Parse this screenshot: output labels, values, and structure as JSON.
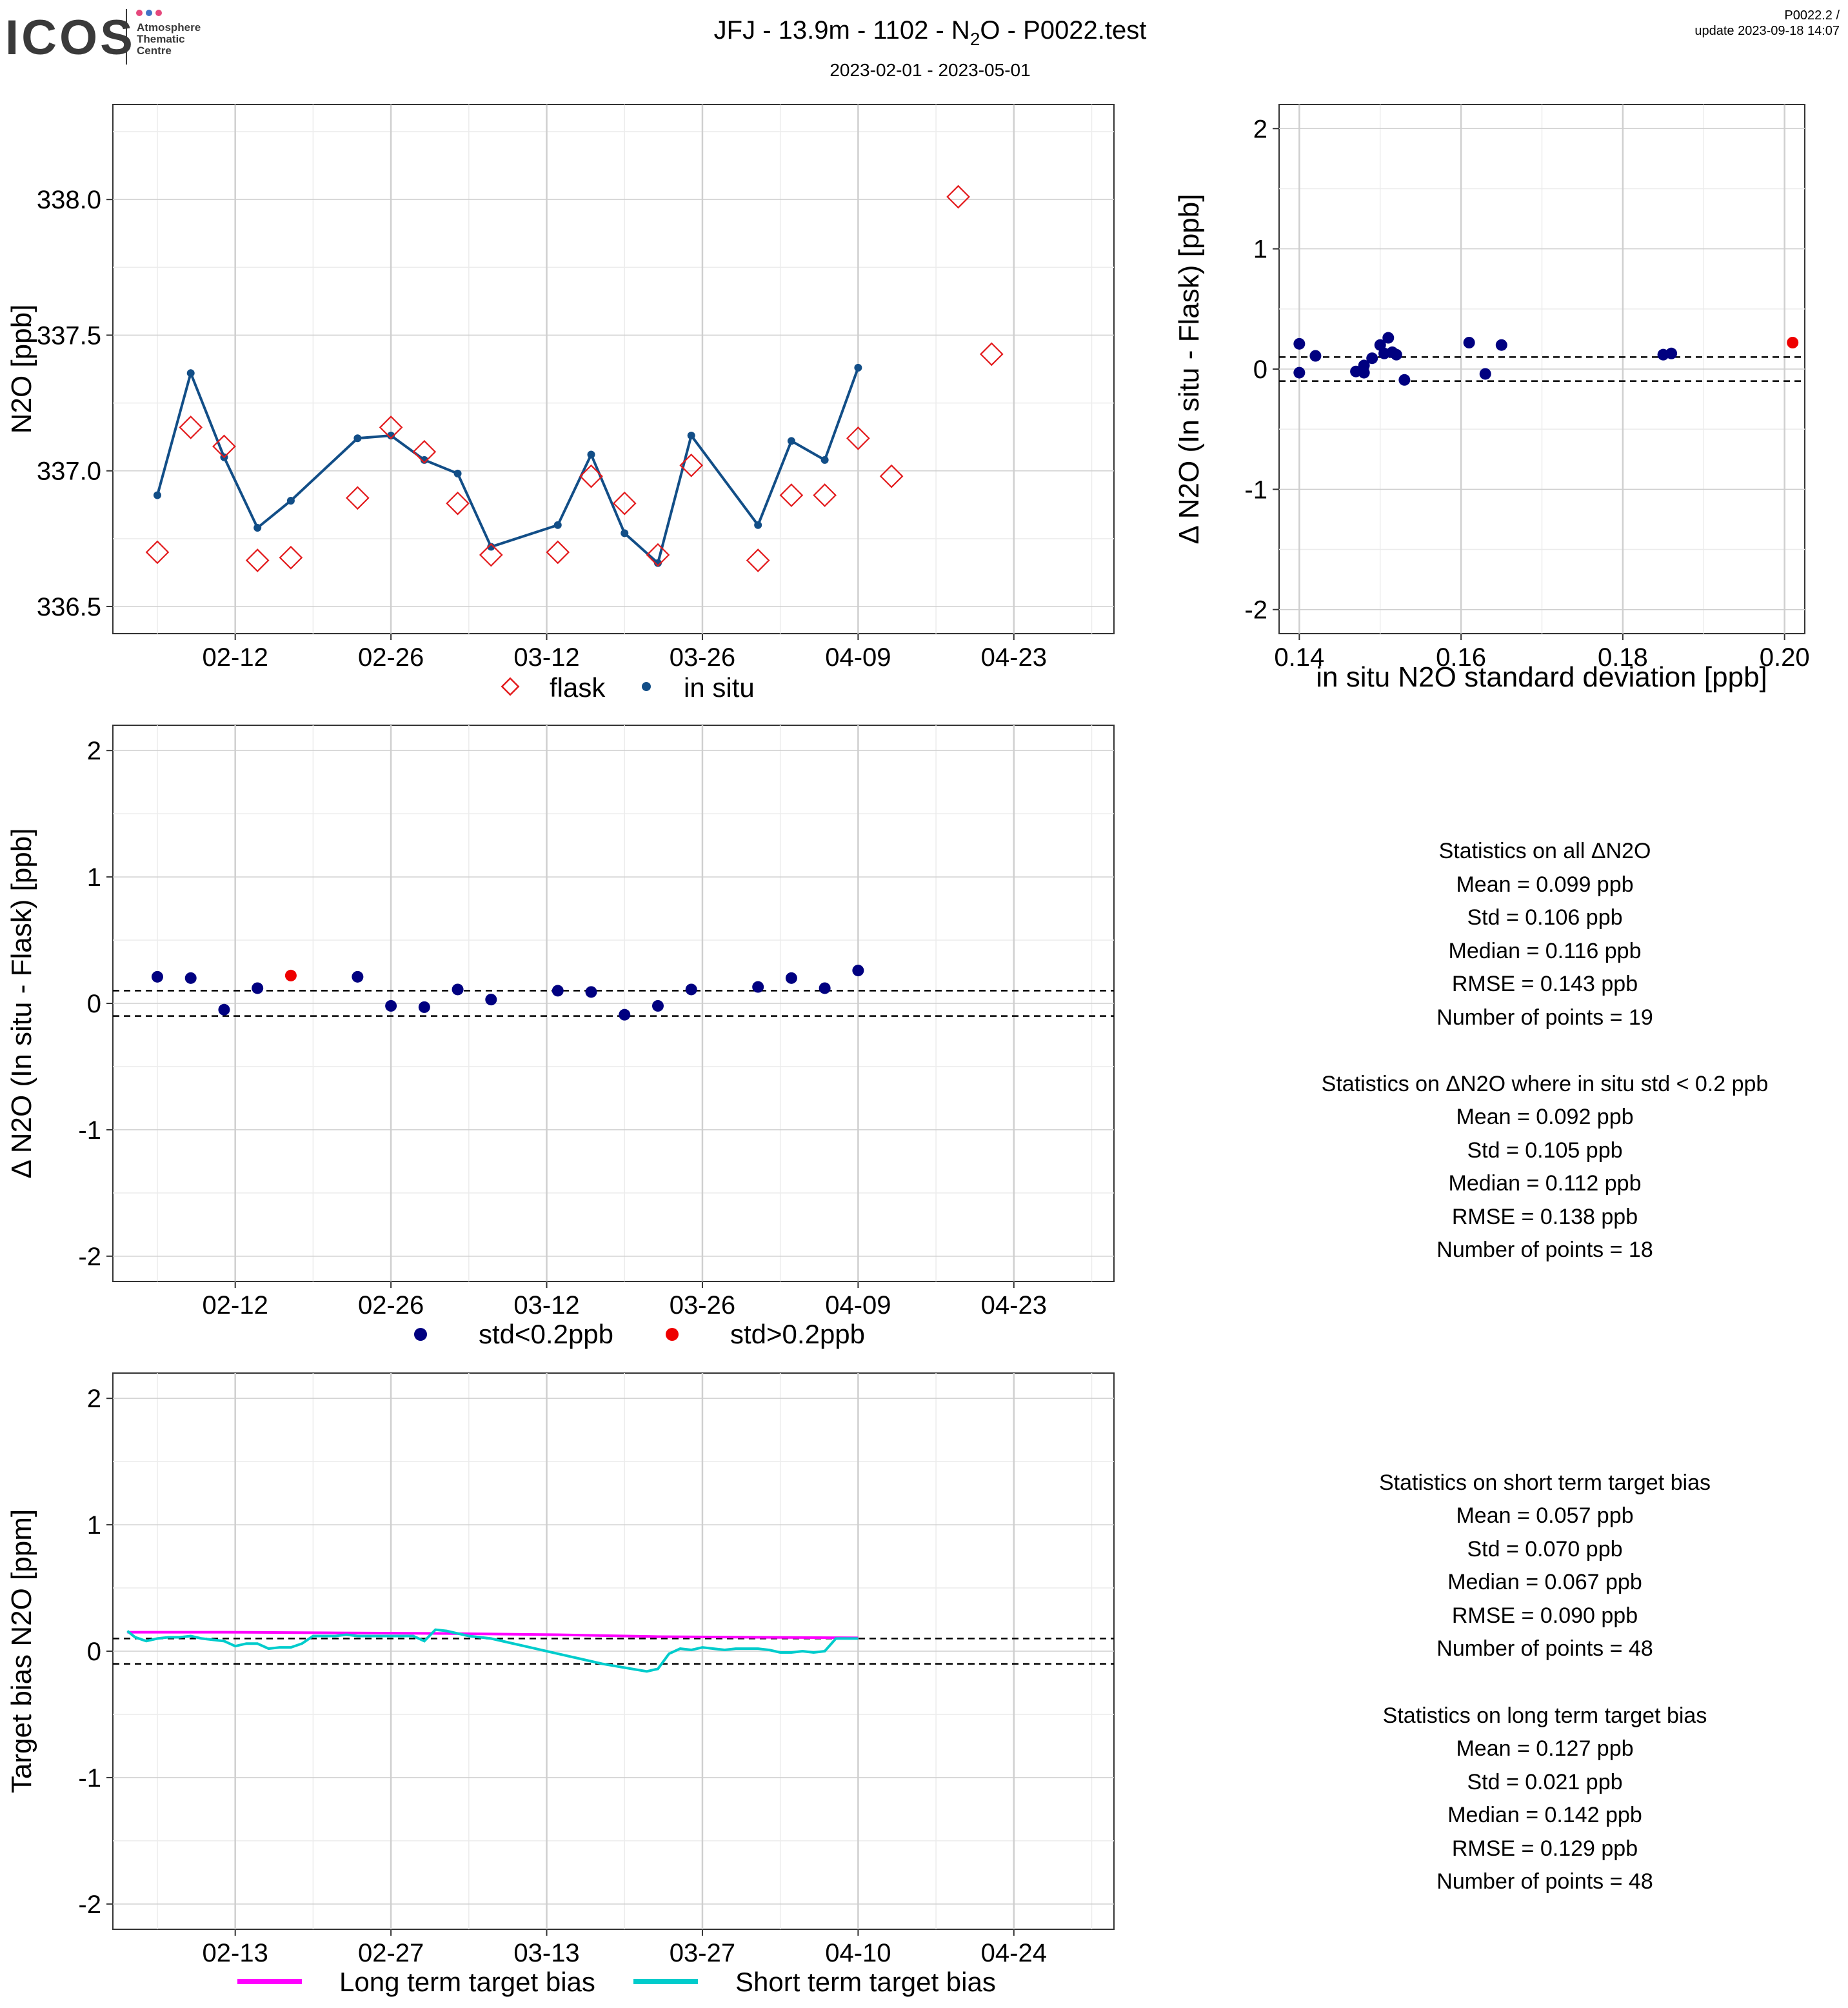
{
  "header": {
    "logo_text": "ICOS",
    "logo_sub": [
      "Atmosphere",
      "Thematic",
      "Centre"
    ],
    "title_prefix": "JFJ - 13.9m - 1102 - N",
    "title_subscript": "2",
    "title_suffix": "O - P0022.test",
    "subtitle": "2023-02-01 - 2023-05-01",
    "version": "P0022.2 /",
    "update": "update  2023-09-18 14:07"
  },
  "colors": {
    "flask": "#e31a1c",
    "insitu": "#124e87",
    "low_std": "#000080",
    "high_std": "#ee0000",
    "long_term": "#ff00ff",
    "short_term": "#00cccc",
    "grid_major": "#cfcfcf",
    "grid_minor": "#ececec"
  },
  "chart_data": [
    {
      "id": "timeseries",
      "type": "line",
      "ylabel": "N2O [ppb]",
      "xlim": [
        0,
        90
      ],
      "ylim": [
        336.4,
        338.35
      ],
      "x_ticks": [
        {
          "x": 11,
          "label": "02-12"
        },
        {
          "x": 25,
          "label": "02-26"
        },
        {
          "x": 39,
          "label": "03-12"
        },
        {
          "x": 53,
          "label": "03-26"
        },
        {
          "x": 67,
          "label": "04-09"
        },
        {
          "x": 81,
          "label": "04-23"
        }
      ],
      "y_ticks": [
        {
          "y": 336.5,
          "label": "336.5"
        },
        {
          "y": 337.0,
          "label": "337.0"
        },
        {
          "y": 337.5,
          "label": "337.5"
        },
        {
          "y": 338.0,
          "label": "338.0"
        }
      ],
      "legend": [
        "flask",
        "in situ"
      ],
      "series": [
        {
          "name": "flask",
          "marker": "diamond",
          "x": [
            4,
            7,
            10,
            13,
            16,
            22,
            25,
            28,
            31,
            34,
            40,
            43,
            46,
            49,
            52,
            58,
            61,
            64,
            67,
            70,
            76,
            79
          ],
          "y": [
            336.7,
            337.16,
            337.09,
            336.67,
            336.68,
            336.9,
            337.16,
            337.07,
            336.88,
            336.69,
            336.7,
            336.98,
            336.88,
            336.69,
            337.02,
            336.67,
            336.91,
            336.91,
            337.12,
            336.98,
            338.01,
            337.43
          ]
        },
        {
          "name": "in situ",
          "marker": "dot-line",
          "x": [
            4,
            7,
            10,
            13,
            16,
            22,
            25,
            28,
            31,
            34,
            40,
            43,
            46,
            49,
            52,
            58,
            61,
            64,
            67
          ],
          "y": [
            336.91,
            337.36,
            337.05,
            336.79,
            336.89,
            337.12,
            337.13,
            337.04,
            336.99,
            336.72,
            336.8,
            337.06,
            336.77,
            336.66,
            337.13,
            336.8,
            337.11,
            337.04,
            337.38
          ]
        }
      ]
    },
    {
      "id": "std-scatter",
      "type": "scatter",
      "ylabel": "Δ N2O (In situ - Flask) [ppb]",
      "xlabel": "in situ N2O standard deviation [ppb]",
      "xlim": [
        0.1375,
        0.2025
      ],
      "ylim": [
        -2.2,
        2.2
      ],
      "x_ticks": [
        {
          "x": 0.14,
          "label": "0.14"
        },
        {
          "x": 0.16,
          "label": "0.16"
        },
        {
          "x": 0.18,
          "label": "0.18"
        },
        {
          "x": 0.2,
          "label": "0.20"
        }
      ],
      "y_ticks": [
        {
          "y": -2,
          "label": "-2"
        },
        {
          "y": -1,
          "label": "-1"
        },
        {
          "y": 0,
          "label": "0"
        },
        {
          "y": 1,
          "label": "1"
        },
        {
          "y": 2,
          "label": "2"
        }
      ],
      "threshold_lines": [
        0.1,
        -0.1
      ],
      "series": [
        {
          "name": "std<0.2ppb",
          "x": [
            0.14,
            0.14,
            0.142,
            0.147,
            0.148,
            0.148,
            0.149,
            0.15,
            0.1505,
            0.151,
            0.1515,
            0.152,
            0.153,
            0.161,
            0.163,
            0.165,
            0.185,
            0.186
          ],
          "y": [
            0.21,
            -0.03,
            0.11,
            -0.02,
            -0.03,
            0.03,
            0.09,
            0.2,
            0.13,
            0.26,
            0.14,
            0.12,
            -0.09,
            0.22,
            -0.04,
            0.2,
            0.12,
            0.13
          ]
        },
        {
          "name": "std>0.2ppb",
          "x": [
            0.201
          ],
          "y": [
            0.22
          ]
        }
      ]
    },
    {
      "id": "delta-time",
      "type": "scatter",
      "ylabel": "Δ N2O (In situ - Flask) [ppb]",
      "xlim": [
        0,
        90
      ],
      "ylim": [
        -2.2,
        2.2
      ],
      "x_ticks": [
        {
          "x": 11,
          "label": "02-12"
        },
        {
          "x": 25,
          "label": "02-26"
        },
        {
          "x": 39,
          "label": "03-12"
        },
        {
          "x": 53,
          "label": "03-26"
        },
        {
          "x": 67,
          "label": "04-09"
        },
        {
          "x": 81,
          "label": "04-23"
        }
      ],
      "y_ticks": [
        {
          "y": -2,
          "label": "-2"
        },
        {
          "y": -1,
          "label": "-1"
        },
        {
          "y": 0,
          "label": "0"
        },
        {
          "y": 1,
          "label": "1"
        },
        {
          "y": 2,
          "label": "2"
        }
      ],
      "threshold_lines": [
        0.1,
        -0.1
      ],
      "legend": [
        "std<0.2ppb",
        "std>0.2ppb"
      ],
      "series": [
        {
          "name": "std<0.2ppb",
          "x": [
            4,
            7,
            10,
            13,
            22,
            25,
            28,
            31,
            34,
            40,
            43,
            46,
            49,
            52,
            58,
            61,
            64,
            67
          ],
          "y": [
            0.21,
            0.2,
            -0.05,
            0.12,
            0.21,
            -0.02,
            -0.03,
            0.11,
            0.03,
            0.1,
            0.09,
            -0.09,
            -0.02,
            0.11,
            0.13,
            0.2,
            0.12,
            0.26
          ]
        },
        {
          "name": "std>0.2ppb",
          "x": [
            16
          ],
          "y": [
            0.22
          ]
        }
      ]
    },
    {
      "id": "target-bias",
      "type": "line",
      "ylabel": "Target bias N2O [ppm]",
      "xlim": [
        0,
        90
      ],
      "ylim": [
        -2.2,
        2.2
      ],
      "x_ticks": [
        {
          "x": 11,
          "label": "02-13"
        },
        {
          "x": 25,
          "label": "02-27"
        },
        {
          "x": 39,
          "label": "03-13"
        },
        {
          "x": 53,
          "label": "03-27"
        },
        {
          "x": 67,
          "label": "04-10"
        },
        {
          "x": 81,
          "label": "04-24"
        }
      ],
      "y_ticks": [
        {
          "y": -2,
          "label": "-2"
        },
        {
          "y": -1,
          "label": "-1"
        },
        {
          "y": 0,
          "label": "0"
        },
        {
          "y": 1,
          "label": "1"
        },
        {
          "y": 2,
          "label": "2"
        }
      ],
      "threshold_lines": [
        0.1,
        -0.1
      ],
      "legend": [
        "Long term target bias",
        "Short term target bias"
      ],
      "series": [
        {
          "name": "Long term target bias",
          "x": [
            1.3,
            10,
            20,
            30,
            40,
            49,
            58,
            67
          ],
          "y": [
            0.15,
            0.15,
            0.145,
            0.14,
            0.13,
            0.115,
            0.11,
            0.105
          ]
        },
        {
          "name": "Short term target bias",
          "x": [
            1.3,
            2,
            3,
            4,
            5,
            6,
            7,
            8,
            9,
            10,
            11,
            12,
            13,
            14,
            15,
            16,
            17,
            18,
            19,
            20,
            21,
            22,
            23,
            24,
            25,
            26,
            27,
            28,
            29,
            30,
            31,
            32,
            34,
            36,
            38,
            40,
            42,
            44,
            46,
            48,
            49,
            50,
            51,
            52,
            53,
            54,
            55,
            56,
            57,
            58,
            59,
            60,
            61,
            62,
            63,
            64,
            65,
            66,
            67
          ],
          "y": [
            0.16,
            0.11,
            0.08,
            0.1,
            0.11,
            0.11,
            0.12,
            0.1,
            0.09,
            0.08,
            0.04,
            0.06,
            0.06,
            0.02,
            0.03,
            0.03,
            0.06,
            0.12,
            0.12,
            0.12,
            0.13,
            0.12,
            0.12,
            0.12,
            0.12,
            0.12,
            0.12,
            0.08,
            0.17,
            0.16,
            0.14,
            0.12,
            0.1,
            0.06,
            0.02,
            -0.02,
            -0.06,
            -0.1,
            -0.13,
            -0.16,
            -0.14,
            -0.02,
            0.02,
            0.01,
            0.03,
            0.02,
            0.01,
            0.02,
            0.02,
            0.02,
            0.01,
            -0.01,
            -0.01,
            0.0,
            -0.01,
            0.0,
            0.1,
            0.1,
            0.1
          ]
        }
      ]
    }
  ],
  "stats": {
    "block1_title": "Statistics on all ΔN2O",
    "block1": [
      "Mean =  0.099 ppb",
      "Std =  0.106 ppb",
      "Median =  0.116 ppb",
      "RMSE =  0.143 ppb",
      "Number of points =  19"
    ],
    "block2_title": "Statistics on ΔN2O where in situ std < 0.2 ppb",
    "block2": [
      "Mean =  0.092 ppb",
      "Std =  0.105 ppb",
      "Median =  0.112 ppb",
      "RMSE =  0.138 ppb",
      "Number of points =  18"
    ],
    "block3_title": "Statistics on short term target bias",
    "block3": [
      "Mean =  0.057 ppb",
      "Std =  0.070 ppb",
      "Median =  0.067 ppb",
      "RMSE =  0.090 ppb",
      "Number of points =  48"
    ],
    "block4_title": "Statistics on long term target bias",
    "block4": [
      "Mean =  0.127 ppb",
      "Std =  0.021 ppb",
      "Median =  0.142 ppb",
      "RMSE =  0.129 ppb",
      "Number of points =  48"
    ]
  }
}
